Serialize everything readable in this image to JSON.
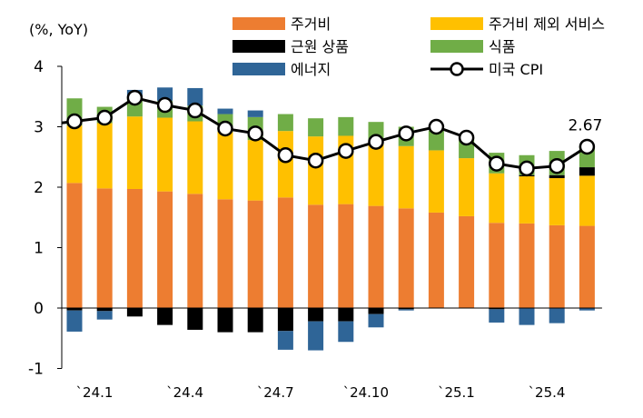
{
  "chart_data": {
    "type": "bar",
    "ylabel": "(%, YoY)",
    "ylim": [
      -1,
      4
    ],
    "yticks": [
      -1,
      0,
      1,
      2,
      3,
      4
    ],
    "grid": false,
    "legend_position": "top",
    "x_tick_labels": [
      {
        "index": 0,
        "label": "`24.1"
      },
      {
        "index": 3,
        "label": "`24.4"
      },
      {
        "index": 6,
        "label": "`24.7"
      },
      {
        "index": 9,
        "label": "`24.10"
      },
      {
        "index": 12,
        "label": "`25.1"
      },
      {
        "index": 15,
        "label": "`25.4"
      }
    ],
    "series": [
      {
        "name": "주거비",
        "color": "#ED7D31",
        "values": [
          2.07,
          1.98,
          1.97,
          1.93,
          1.89,
          1.8,
          1.78,
          1.83,
          1.71,
          1.72,
          1.69,
          1.65,
          1.58,
          1.52,
          1.41,
          1.4,
          1.37,
          1.36
        ]
      },
      {
        "name": "주거비 제외 서비스",
        "color": "#FFC000",
        "values": [
          0.95,
          1.08,
          1.2,
          1.22,
          1.2,
          1.12,
          1.0,
          1.1,
          1.13,
          1.13,
          1.08,
          1.03,
          1.03,
          0.96,
          0.82,
          0.78,
          0.78,
          0.83
        ]
      },
      {
        "name": "근원 상품",
        "color": "#000000",
        "values": [
          -0.04,
          -0.05,
          -0.14,
          -0.28,
          -0.36,
          -0.4,
          -0.4,
          -0.38,
          -0.22,
          -0.22,
          -0.1,
          -0.02,
          0.0,
          0.0,
          -0.02,
          0.02,
          0.05,
          0.14
        ]
      },
      {
        "name": "식품",
        "color": "#70AD47",
        "values": [
          0.45,
          0.27,
          0.3,
          0.28,
          0.26,
          0.29,
          0.38,
          0.28,
          0.3,
          0.31,
          0.31,
          0.32,
          0.33,
          0.33,
          0.34,
          0.33,
          0.4,
          0.36
        ]
      },
      {
        "name": "에너지",
        "color": "#2F6597",
        "values": [
          -0.35,
          -0.14,
          0.14,
          0.22,
          0.29,
          0.09,
          0.11,
          -0.31,
          -0.48,
          -0.34,
          -0.22,
          -0.02,
          0.0,
          0.0,
          -0.22,
          -0.28,
          -0.25,
          -0.04
        ]
      }
    ],
    "line": {
      "name": "미국 CPI",
      "color": "#000000",
      "values": [
        3.09,
        3.15,
        3.48,
        3.36,
        3.27,
        2.97,
        2.89,
        2.53,
        2.44,
        2.6,
        2.75,
        2.89,
        3.0,
        2.82,
        2.39,
        2.31,
        2.35,
        2.67
      ],
      "label": "2.67"
    }
  }
}
